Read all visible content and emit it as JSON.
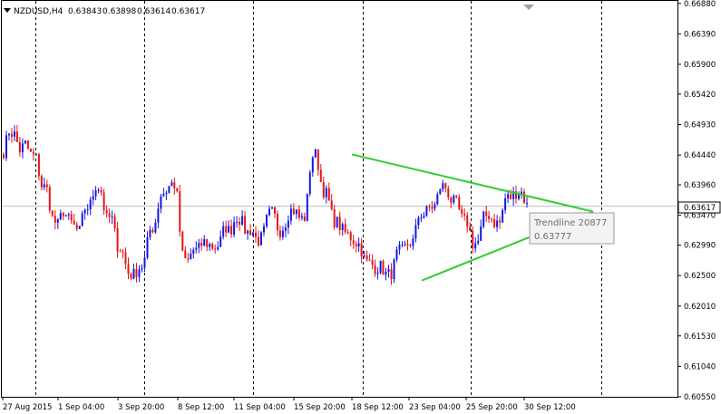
{
  "header": {
    "symbol": "NZDUSD,H4",
    "open": "0.63843",
    "high": "0.63898",
    "low": "0.63614",
    "close": "0.63617"
  },
  "current_price_label": "0.63617",
  "tooltip": {
    "title": "Trendline 20877",
    "value": "0.63777"
  },
  "price_axis_labels": [
    "0.66880",
    "0.66390",
    "0.65900",
    "0.65420",
    "0.64930",
    "0.64440",
    "0.63960",
    "0.63470",
    "0.62990",
    "0.62500",
    "0.62010",
    "0.61530",
    "0.61040",
    "0.60550"
  ],
  "time_axis_labels": [
    "27 Aug 2015",
    "1 Sep 04:00",
    "3 Sep 20:00",
    "8 Sep 12:00",
    "11 Sep 04:00",
    "15 Sep 20:00",
    "18 Sep 12:00",
    "23 Sep 04:00",
    "25 Sep 20:00",
    "30 Sep 12:00"
  ],
  "colors": {
    "bull": "#1515e6",
    "bear": "#e61515",
    "trendline": "#33cc33",
    "grid": "#000000",
    "price_line": "#c0c0c0",
    "tooltip_bg": "#f3f3f3",
    "tooltip_border": "#9e9e9e"
  },
  "chart_data": {
    "type": "candlestick",
    "symbol": "NZDUSD",
    "timeframe": "H4",
    "ylim": [
      0.6055,
      0.6692
    ],
    "last_price": 0.63617,
    "x_range": [
      "2015-08-27",
      "2015-10-02"
    ],
    "x_ticks": [
      "27 Aug 2015",
      "1 Sep 04:00",
      "3 Sep 20:00",
      "8 Sep 12:00",
      "11 Sep 04:00",
      "15 Sep 20:00",
      "18 Sep 12:00",
      "23 Sep 04:00",
      "25 Sep 20:00",
      "30 Sep 12:00"
    ],
    "price_path": [
      [
        0.645,
        0.6483
      ],
      [
        0.6477,
        0.6452
      ],
      [
        0.6462,
        0.6445
      ],
      [
        0.644,
        0.6395
      ],
      [
        0.639,
        0.6343
      ],
      [
        0.633,
        0.6355
      ],
      [
        0.634,
        0.633
      ],
      [
        0.6318,
        0.6358
      ],
      [
        0.6362,
        0.6395
      ],
      [
        0.639,
        0.634
      ],
      [
        0.6345,
        0.63
      ],
      [
        0.629,
        0.6255
      ],
      [
        0.625,
        0.6262
      ],
      [
        0.6268,
        0.6322
      ],
      [
        0.633,
        0.638
      ],
      [
        0.6385,
        0.6398
      ],
      [
        0.6395,
        0.6285
      ],
      [
        0.627,
        0.6292
      ],
      [
        0.629,
        0.6305
      ],
      [
        0.63,
        0.6295
      ],
      [
        0.63,
        0.633
      ],
      [
        0.632,
        0.6345
      ],
      [
        0.634,
        0.6318
      ],
      [
        0.6325,
        0.6305
      ],
      [
        0.6312,
        0.6348
      ],
      [
        0.6352,
        0.632
      ],
      [
        0.633,
        0.6355
      ],
      [
        0.6355,
        0.634
      ],
      [
        0.6345,
        0.6442
      ],
      [
        0.6445,
        0.639
      ],
      [
        0.638,
        0.634
      ],
      [
        0.6335,
        0.632
      ],
      [
        0.6315,
        0.6305
      ],
      [
        0.63,
        0.6272
      ],
      [
        0.627,
        0.6262
      ],
      [
        0.6265,
        0.625
      ],
      [
        0.6255,
        0.6288
      ],
      [
        0.629,
        0.6302
      ],
      [
        0.6305,
        0.635
      ],
      [
        0.6348,
        0.636
      ],
      [
        0.6362,
        0.6395
      ],
      [
        0.6392,
        0.637
      ],
      [
        0.6365,
        0.634
      ],
      [
        0.6335,
        0.63
      ],
      [
        0.6305,
        0.6345
      ],
      [
        0.6348,
        0.6335
      ],
      [
        0.6335,
        0.6375
      ],
      [
        0.6376,
        0.6384
      ],
      [
        0.6384,
        0.6362
      ]
    ],
    "drawn_objects": [
      {
        "type": "trendline",
        "name": "Trendline 20877",
        "from": {
          "time": "2015-09-18 00:00",
          "price": 0.6445
        },
        "to": {
          "time": "2015-10-02 04:00",
          "price": 0.6353
        },
        "value_at_cursor": 0.63777
      },
      {
        "type": "trendline",
        "from": {
          "time": "2015-09-22 08:00",
          "price": 0.6242
        },
        "to": {
          "time": "2015-10-02 04:00",
          "price": 0.6353
        }
      }
    ]
  }
}
